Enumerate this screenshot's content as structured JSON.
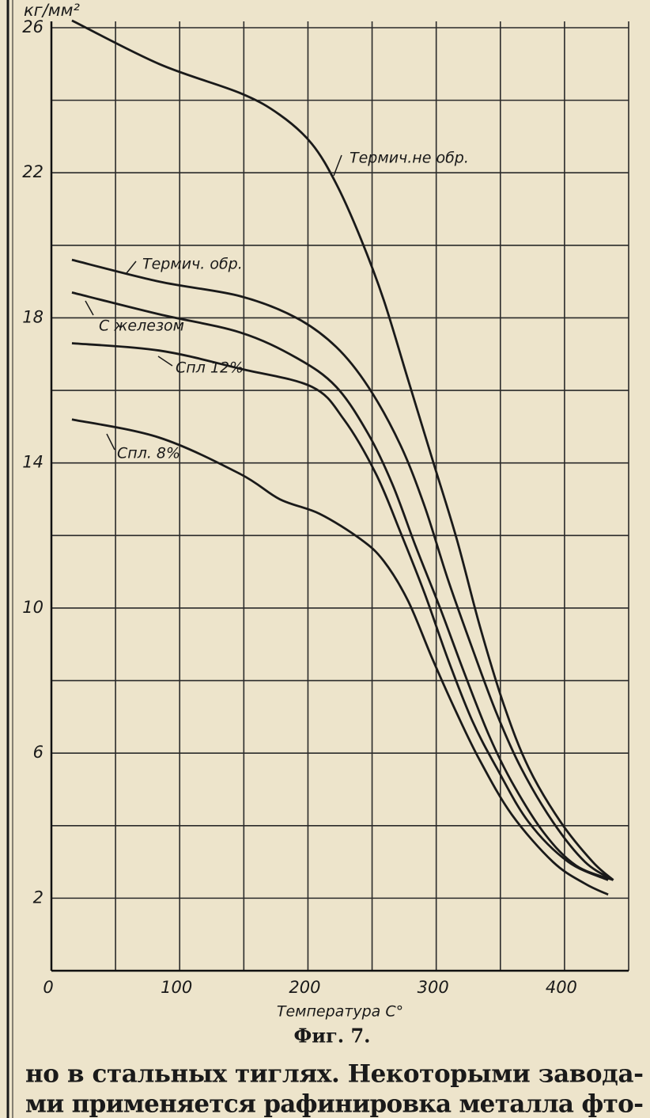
{
  "chart_data": {
    "type": "line",
    "y_unit": "кг/мм²",
    "xlabel": "Температура C°",
    "caption": "Фиг. 7.",
    "xlim": [
      0,
      450
    ],
    "xticks": [
      0,
      100,
      200,
      300,
      400
    ],
    "x_minor_ticks": [
      50,
      150,
      250,
      350,
      450
    ],
    "ylim": [
      0,
      26
    ],
    "yticks": [
      2,
      6,
      10,
      14,
      18,
      22,
      26
    ],
    "y_minor_ticks": [
      0,
      4,
      8,
      12,
      16,
      20,
      24
    ],
    "grid": true,
    "grid_color": "#2a2a2a",
    "series": [
      {
        "name": "Термич.не обр.",
        "color": "#1a1a1a",
        "x": [
          16,
          84,
          147,
          178,
          203,
          222,
          241,
          259,
          278,
          297,
          316,
          334,
          353,
          372,
          397,
          422,
          438
        ],
        "values": [
          26.2,
          25.0,
          24.2,
          23.6,
          22.8,
          21.7,
          20.2,
          18.5,
          16.3,
          14.1,
          11.9,
          9.5,
          7.3,
          5.6,
          4.1,
          3.0,
          2.5
        ]
      },
      {
        "name": "Термич. обр.",
        "color": "#1a1a1a",
        "x": [
          16,
          84,
          147,
          191,
          222,
          247,
          272,
          291,
          309,
          328,
          347,
          366,
          391,
          416,
          438
        ],
        "values": [
          19.6,
          19.0,
          18.6,
          18.0,
          17.2,
          16.1,
          14.5,
          12.8,
          10.8,
          8.9,
          7.1,
          5.6,
          4.1,
          3.0,
          2.5
        ]
      },
      {
        "name": "С железом",
        "color": "#1a1a1a",
        "x": [
          16,
          84,
          147,
          191,
          222,
          247,
          266,
          284,
          303,
          322,
          341,
          359,
          384,
          409,
          438
        ],
        "values": [
          18.7,
          18.1,
          17.6,
          16.9,
          16.1,
          14.8,
          13.4,
          11.7,
          10.0,
          8.2,
          6.5,
          5.2,
          3.8,
          2.9,
          2.5
        ]
      },
      {
        "name": "Спл 12%",
        "color": "#1a1a1a",
        "x": [
          16,
          84,
          147,
          203,
          228,
          253,
          272,
          291,
          309,
          328,
          347,
          372,
          403,
          434
        ],
        "values": [
          17.3,
          17.1,
          16.6,
          16.1,
          15.2,
          13.7,
          12.1,
          10.4,
          8.6,
          6.9,
          5.6,
          4.1,
          3.0,
          2.5
        ]
      },
      {
        "name": "Спл. 8%",
        "color": "#1a1a1a",
        "x": [
          16,
          84,
          147,
          178,
          209,
          241,
          259,
          278,
          297,
          316,
          334,
          359,
          391,
          416,
          434
        ],
        "values": [
          15.2,
          14.7,
          13.7,
          13.0,
          12.6,
          11.9,
          11.3,
          10.2,
          8.6,
          7.1,
          5.8,
          4.3,
          3.0,
          2.4,
          2.1
        ]
      }
    ]
  },
  "body_text": {
    "lines": [
      "но в стальных тиглях. Некоторыми завода-",
      "ми применяется рафинировка металла фто-"
    ]
  }
}
